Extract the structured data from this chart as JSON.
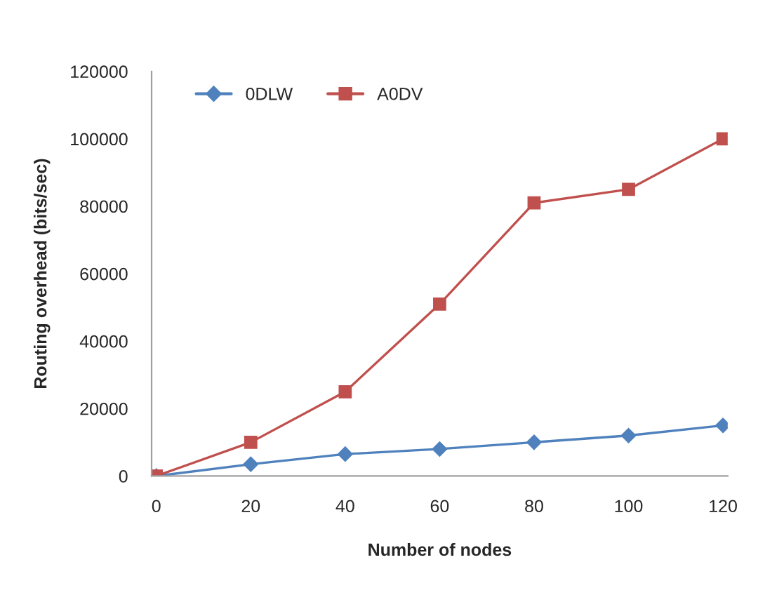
{
  "chart_data": {
    "type": "line",
    "xlabel": "Number of nodes",
    "ylabel": "Routing overhead (bits/sec)",
    "categories": [
      "0",
      "20",
      "40",
      "60",
      "80",
      "100",
      "120"
    ],
    "series": [
      {
        "name": "0DLW",
        "color": "#4f81bd",
        "marker": "diamond",
        "values": [
          0,
          3500,
          6500,
          8000,
          10000,
          12000,
          15000
        ]
      },
      {
        "name": "A0DV",
        "color": "#c0504d",
        "marker": "square",
        "values": [
          0,
          10000,
          25000,
          51000,
          81000,
          85000,
          100000
        ]
      }
    ],
    "ylim": [
      0,
      120000
    ],
    "yticks": [
      0,
      20000,
      40000,
      60000,
      80000,
      100000,
      120000
    ],
    "grid": false,
    "legend": "top left"
  }
}
